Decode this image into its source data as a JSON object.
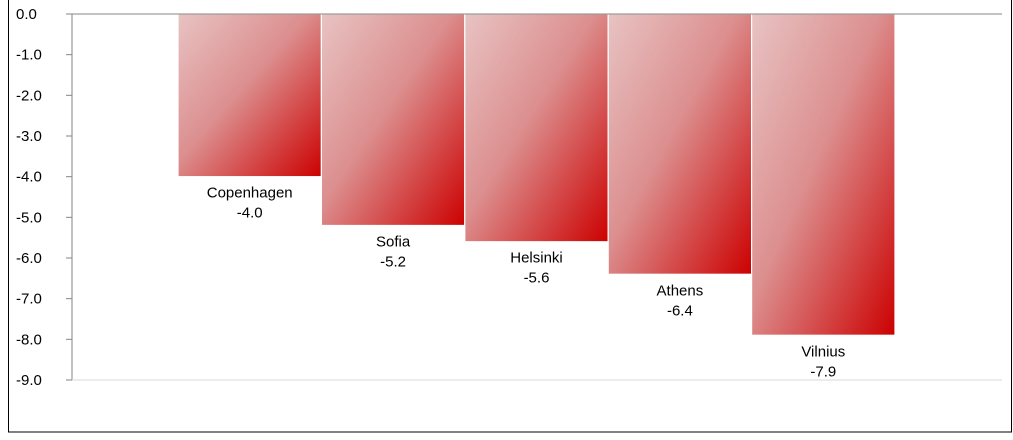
{
  "chart_data": {
    "type": "bar",
    "orientation": "vertical",
    "categories": [
      "Copenhagen",
      "Sofia",
      "Helsinki",
      "Athens",
      "Vilnius"
    ],
    "values": [
      -4.0,
      -5.2,
      -5.6,
      -6.4,
      -7.9
    ],
    "value_labels": [
      "-4.0",
      "-5.2",
      "-5.6",
      "-6.4",
      "-7.9"
    ],
    "ylim": [
      -9.0,
      0.0
    ],
    "yticks": [
      0.0,
      -1.0,
      -2.0,
      -3.0,
      -4.0,
      -5.0,
      -6.0,
      -7.0,
      -8.0,
      -9.0
    ],
    "ytick_labels": [
      "0.0",
      "-1.0",
      "-2.0",
      "-3.0",
      "-4.0",
      "-5.0",
      "-6.0",
      "-7.0",
      "-8.0",
      "-9.0"
    ],
    "title": "",
    "xlabel": "",
    "ylabel": "",
    "grid": false,
    "legend": "none",
    "colors": {
      "bar_light": "#e8c3c3",
      "bar_dark": "#cc0000",
      "axis": "#868686",
      "frame": "#000000"
    }
  }
}
